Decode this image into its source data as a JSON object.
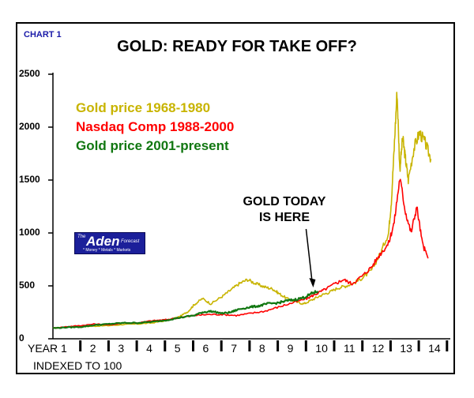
{
  "header": {
    "chart_tag": "CHART 1",
    "title": "GOLD: READY FOR TAKE OFF?"
  },
  "annotation": {
    "line1": "GOLD TODAY",
    "line2": "IS HERE"
  },
  "logo": {
    "the": "The",
    "name": "Aden",
    "forecast": "Forecast",
    "tagline": "* Money * Metals * Markets"
  },
  "colors": {
    "gold_1968": "#c8b400",
    "nasdaq": "#ff0000",
    "gold_2001": "#117711",
    "logo_bg": "#1b1f9a"
  },
  "chart_data": {
    "type": "line",
    "title": "GOLD: READY FOR TAKE OFF?",
    "xlabel": "INDEXED TO 100",
    "ylabel": "",
    "xlim": [
      0,
      14
    ],
    "ylim": [
      0,
      2500
    ],
    "y_ticks": [
      {
        "value": 2500,
        "label": "2500"
      },
      {
        "value": 2000,
        "label": "2000"
      },
      {
        "value": 1500,
        "label": "1500"
      },
      {
        "value": 1000,
        "label": "1000"
      },
      {
        "value": 500,
        "label": "500"
      },
      {
        "value": 0,
        "label": "0"
      }
    ],
    "x_ticks": [
      {
        "value": 0,
        "label": "YEAR 1"
      },
      {
        "value": 1,
        "label": "2"
      },
      {
        "value": 2,
        "label": "3"
      },
      {
        "value": 3,
        "label": "4"
      },
      {
        "value": 4,
        "label": "5"
      },
      {
        "value": 5,
        "label": "6"
      },
      {
        "value": 6,
        "label": "7"
      },
      {
        "value": 7,
        "label": "8"
      },
      {
        "value": 8,
        "label": "9"
      },
      {
        "value": 9,
        "label": "10"
      },
      {
        "value": 10,
        "label": "11"
      },
      {
        "value": 11,
        "label": "12"
      },
      {
        "value": 12,
        "label": "13"
      },
      {
        "value": 13,
        "label": "14"
      }
    ],
    "annotation_point": {
      "x": 9.2,
      "y": 470
    },
    "series": [
      {
        "name": "Gold price 1968-1980",
        "color": "#c8b400",
        "points": [
          [
            0,
            100
          ],
          [
            0.5,
            110
          ],
          [
            1,
            115
          ],
          [
            1.5,
            120
          ],
          [
            2,
            125
          ],
          [
            2.5,
            135
          ],
          [
            3,
            140
          ],
          [
            3.5,
            150
          ],
          [
            4,
            170
          ],
          [
            4.5,
            210
          ],
          [
            4.8,
            260
          ],
          [
            5,
            320
          ],
          [
            5.3,
            380
          ],
          [
            5.6,
            330
          ],
          [
            6,
            400
          ],
          [
            6.3,
            460
          ],
          [
            6.6,
            520
          ],
          [
            6.9,
            560
          ],
          [
            7.2,
            520
          ],
          [
            7.5,
            490
          ],
          [
            7.8,
            470
          ],
          [
            8,
            430
          ],
          [
            8.3,
            380
          ],
          [
            8.6,
            350
          ],
          [
            8.9,
            330
          ],
          [
            9.2,
            370
          ],
          [
            9.5,
            410
          ],
          [
            9.8,
            440
          ],
          [
            10.1,
            480
          ],
          [
            10.4,
            500
          ],
          [
            10.7,
            530
          ],
          [
            11,
            580
          ],
          [
            11.3,
            650
          ],
          [
            11.6,
            800
          ],
          [
            11.9,
            1000
          ],
          [
            12,
            1300
          ],
          [
            12.1,
            1800
          ],
          [
            12.2,
            2340
          ],
          [
            12.3,
            1600
          ],
          [
            12.4,
            1900
          ],
          [
            12.5,
            1700
          ],
          [
            12.6,
            1500
          ],
          [
            12.8,
            1800
          ],
          [
            13,
            1950
          ],
          [
            13.2,
            1850
          ],
          [
            13.4,
            1700
          ]
        ]
      },
      {
        "name": "Nasdaq Comp 1988-2000",
        "color": "#ff0000",
        "points": [
          [
            0,
            100
          ],
          [
            0.5,
            115
          ],
          [
            1,
            125
          ],
          [
            1.5,
            140
          ],
          [
            2,
            130
          ],
          [
            2.5,
            150
          ],
          [
            3,
            150
          ],
          [
            3.5,
            170
          ],
          [
            4,
            180
          ],
          [
            4.5,
            200
          ],
          [
            5,
            220
          ],
          [
            5.5,
            230
          ],
          [
            6,
            230
          ],
          [
            6.5,
            220
          ],
          [
            7,
            240
          ],
          [
            7.5,
            260
          ],
          [
            8,
            300
          ],
          [
            8.5,
            340
          ],
          [
            9,
            380
          ],
          [
            9.3,
            420
          ],
          [
            9.6,
            460
          ],
          [
            10,
            520
          ],
          [
            10.3,
            560
          ],
          [
            10.6,
            520
          ],
          [
            11,
            600
          ],
          [
            11.3,
            680
          ],
          [
            11.6,
            800
          ],
          [
            11.9,
            900
          ],
          [
            12.1,
            1100
          ],
          [
            12.3,
            1520
          ],
          [
            12.5,
            1200
          ],
          [
            12.7,
            1000
          ],
          [
            12.9,
            1250
          ],
          [
            13.1,
            900
          ],
          [
            13.3,
            760
          ]
        ]
      },
      {
        "name": "Gold price 2001-present",
        "color": "#117711",
        "points": [
          [
            0,
            100
          ],
          [
            0.5,
            108
          ],
          [
            1,
            112
          ],
          [
            1.5,
            130
          ],
          [
            2,
            140
          ],
          [
            2.5,
            150
          ],
          [
            3,
            150
          ],
          [
            3.5,
            160
          ],
          [
            4,
            175
          ],
          [
            4.5,
            200
          ],
          [
            5,
            220
          ],
          [
            5.3,
            250
          ],
          [
            5.6,
            260
          ],
          [
            6,
            240
          ],
          [
            6.3,
            250
          ],
          [
            6.6,
            280
          ],
          [
            7,
            300
          ],
          [
            7.3,
            310
          ],
          [
            7.6,
            330
          ],
          [
            8,
            340
          ],
          [
            8.3,
            360
          ],
          [
            8.6,
            370
          ],
          [
            8.9,
            390
          ],
          [
            9.2,
            430
          ],
          [
            9.4,
            450
          ]
        ]
      }
    ]
  }
}
